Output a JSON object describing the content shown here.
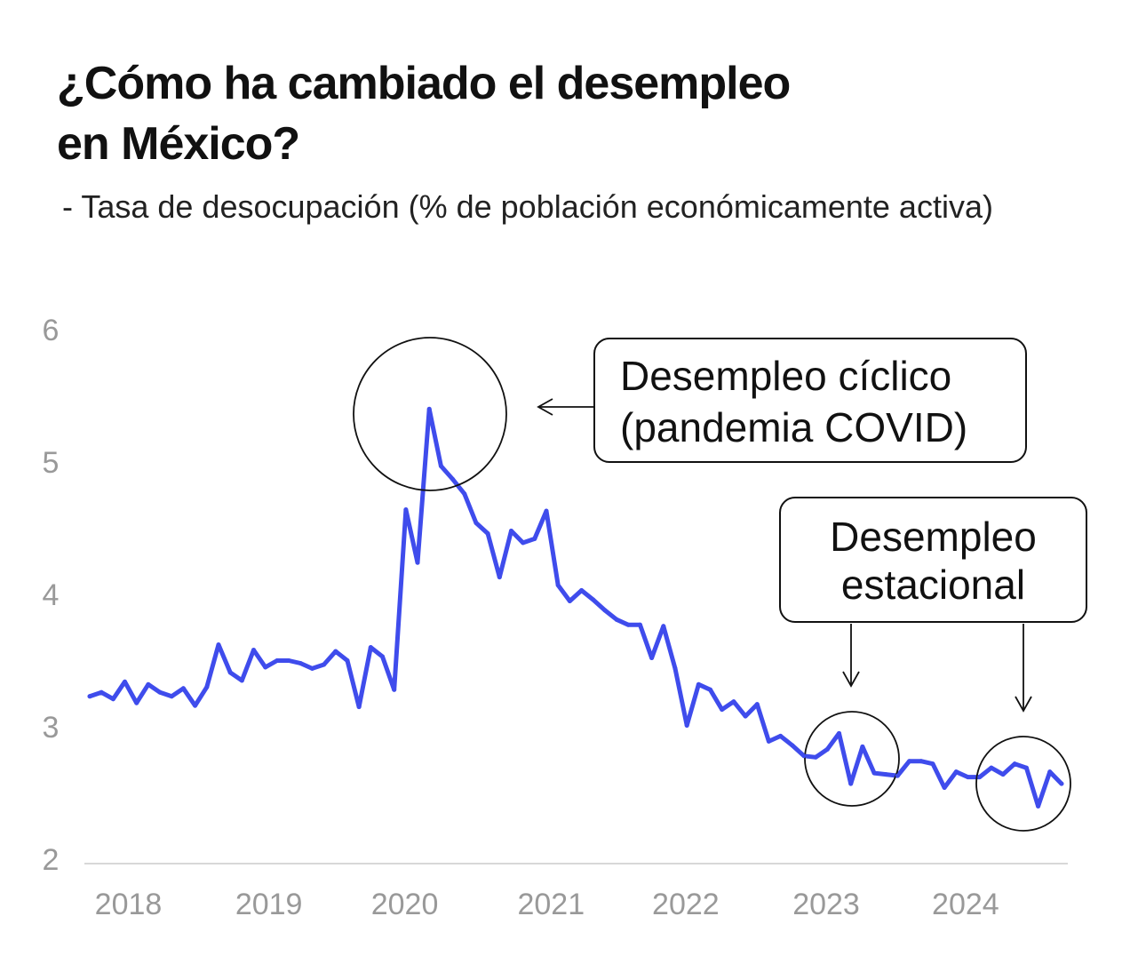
{
  "title_line1": "¿Cómo ha cambiado el desempleo",
  "title_line2": "en México?",
  "subtitle": "-  Tasa de desocupación (% de población económicamente activa)",
  "colors": {
    "line": "#3f4cec",
    "axis": "#cccccc",
    "tick": "#999999"
  },
  "annotations": {
    "cyclical_line1": "Desempleo cíclico",
    "cyclical_line2": "(pandemia COVID)",
    "seasonal_line1": "Desempleo",
    "seasonal_line2": "estacional"
  },
  "chart_data": {
    "type": "line",
    "title": "¿Cómo ha cambiado el desempleo en México?",
    "ylabel": "Tasa de desocupación (% de población económicamente activa)",
    "xlabel": "",
    "ylim": [
      2,
      6
    ],
    "yticks": [
      2,
      3,
      4,
      5,
      6
    ],
    "xticks": [
      {
        "label": "2018",
        "x": 3.3
      },
      {
        "label": "2019",
        "x": 15.3
      },
      {
        "label": "2020",
        "x": 26.9
      },
      {
        "label": "2021",
        "x": 39.4
      },
      {
        "label": "2022",
        "x": 50.9
      },
      {
        "label": "2023",
        "x": 62.9
      },
      {
        "label": "2024",
        "x": 74.8
      }
    ],
    "x_unit": "month index",
    "grid": false,
    "series": [
      {
        "name": "Tasa de desocupación",
        "values": [
          3.23,
          3.26,
          3.21,
          3.34,
          3.18,
          3.32,
          3.26,
          3.23,
          3.29,
          3.16,
          3.3,
          3.62,
          3.41,
          3.35,
          3.58,
          3.45,
          3.5,
          3.5,
          3.48,
          3.44,
          3.47,
          3.57,
          3.5,
          3.15,
          3.6,
          3.53,
          3.28,
          4.64,
          4.24,
          5.4,
          4.97,
          4.87,
          4.76,
          4.54,
          4.46,
          4.13,
          4.48,
          4.39,
          4.42,
          4.63,
          4.07,
          3.95,
          4.03,
          3.96,
          3.88,
          3.81,
          3.77,
          3.77,
          3.52,
          3.76,
          3.44,
          3.01,
          3.32,
          3.28,
          3.13,
          3.19,
          3.08,
          3.17,
          2.89,
          2.93,
          2.86,
          2.78,
          2.77,
          2.83,
          2.95,
          2.57,
          2.85,
          2.65,
          2.64,
          2.63,
          2.74,
          2.74,
          2.72,
          2.54,
          2.66,
          2.62,
          2.62,
          2.69,
          2.64,
          2.72,
          2.69,
          2.4,
          2.66,
          2.57
        ]
      }
    ]
  }
}
